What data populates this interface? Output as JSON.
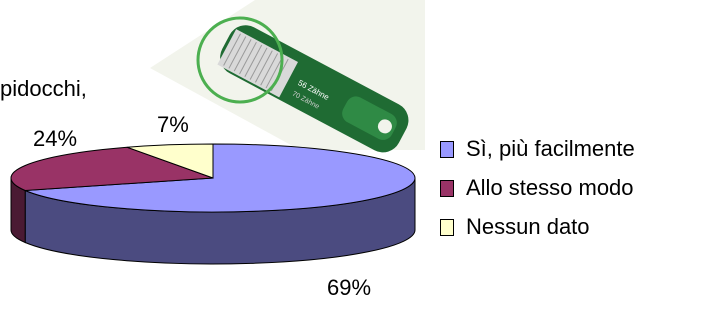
{
  "partial_text": "pidocchi,",
  "comb_labels": {
    "line1": "56 Zähne",
    "line2": "70 Zähne"
  },
  "chart_data": {
    "type": "pie",
    "title": "",
    "categories": [
      "Sì, più facilmente",
      "Allo stesso modo",
      "Nessun dato"
    ],
    "values": [
      69,
      24,
      7
    ],
    "value_labels": [
      "69%",
      "24%",
      "7%"
    ],
    "colors": [
      "#9999ff",
      "#993366",
      "#ffffcc"
    ],
    "side_colors": [
      "#4b4b80",
      "#4a1a33",
      "#c9c9a0"
    ],
    "legend": "right"
  },
  "legend": {
    "items": [
      {
        "label": "Sì, più facilmente",
        "color": "#9999ff"
      },
      {
        "label": "Allo stesso modo",
        "color": "#993366"
      },
      {
        "label": "Nessun dato",
        "color": "#ffffcc"
      }
    ]
  }
}
